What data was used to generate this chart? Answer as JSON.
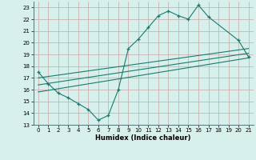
{
  "title": "",
  "xlabel": "Humidex (Indice chaleur)",
  "ylabel": "",
  "background_color": "#d8f0ec",
  "grid_color": "#c8a8a8",
  "line_color": "#1a7a6e",
  "xlim": [
    -0.5,
    21.5
  ],
  "ylim": [
    13,
    23.5
  ],
  "xticks": [
    0,
    1,
    2,
    3,
    4,
    5,
    6,
    7,
    8,
    9,
    10,
    11,
    12,
    13,
    14,
    15,
    16,
    17,
    18,
    19,
    20,
    21
  ],
  "yticks": [
    13,
    14,
    15,
    16,
    17,
    18,
    19,
    20,
    21,
    22,
    23
  ],
  "main_x": [
    0,
    1,
    2,
    3,
    4,
    5,
    6,
    7,
    8,
    9,
    10,
    11,
    12,
    13,
    14,
    15,
    16,
    17,
    20,
    21
  ],
  "main_y": [
    17.5,
    16.5,
    15.7,
    15.3,
    14.8,
    14.3,
    13.4,
    13.8,
    16.0,
    19.5,
    20.3,
    21.3,
    22.3,
    22.7,
    22.3,
    22.0,
    23.2,
    22.2,
    20.2,
    18.8
  ],
  "line1_x": [
    0,
    21
  ],
  "line1_y": [
    17.0,
    19.5
  ],
  "line2_x": [
    0,
    21
  ],
  "line2_y": [
    16.4,
    19.1
  ],
  "line3_x": [
    0,
    21
  ],
  "line3_y": [
    15.8,
    18.7
  ]
}
